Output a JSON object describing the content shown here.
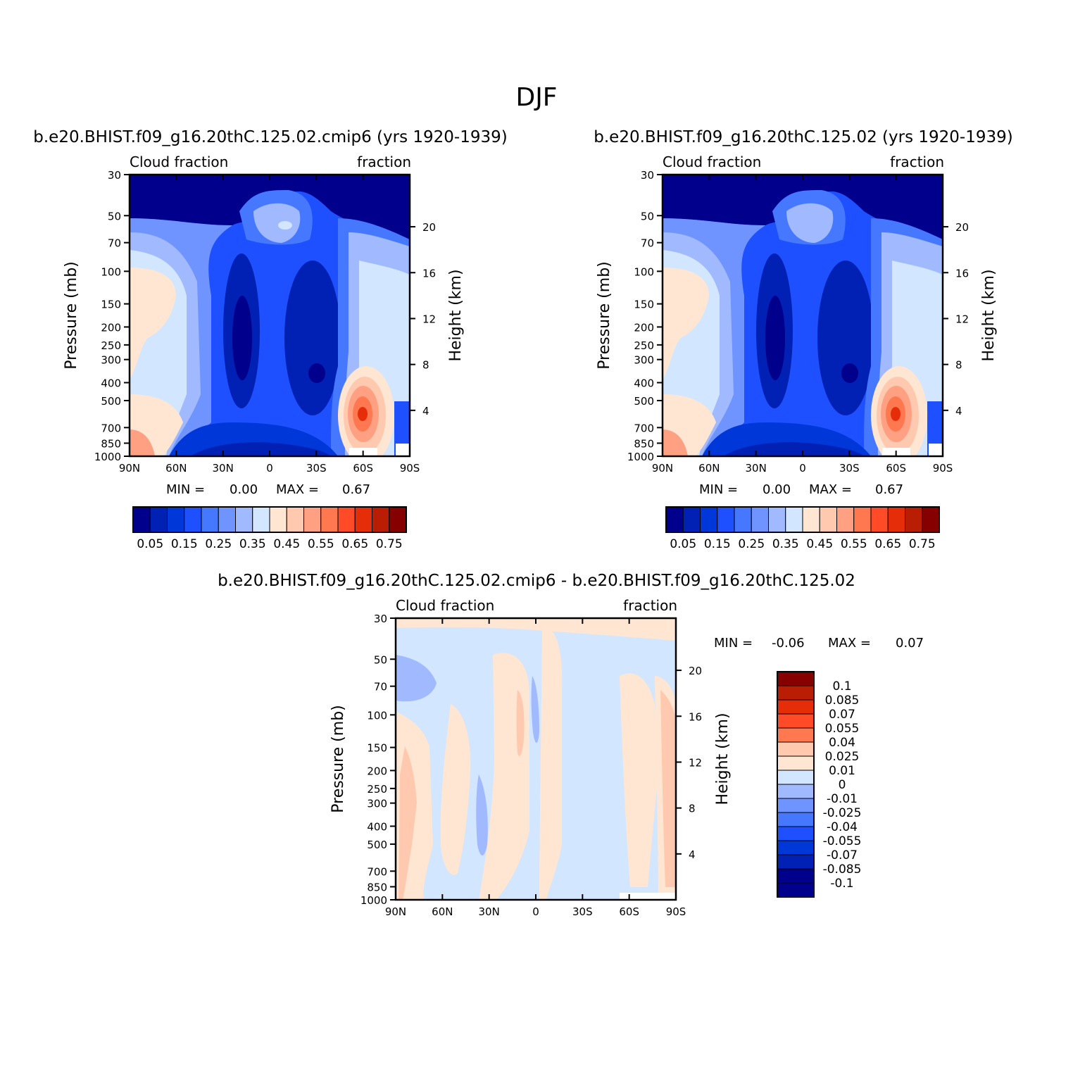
{
  "figure": {
    "title": "DJF"
  },
  "colors": {
    "abs_palette": [
      "#00008c",
      "#0021b3",
      "#0037d9",
      "#1e50ff",
      "#4678ff",
      "#7094ff",
      "#a0b9ff",
      "#d2e6ff",
      "#ffe6d2",
      "#ffc9af",
      "#ffa082",
      "#ff7850",
      "#ff4b28",
      "#e62d0a",
      "#b91e05",
      "#870000"
    ],
    "diff_palette": [
      "#00008c",
      "#0021b3",
      "#0037d9",
      "#1e50ff",
      "#4678ff",
      "#7094ff",
      "#a0b9ff",
      "#d2e6ff",
      "#ffe6d2",
      "#ffc9af",
      "#ff7850",
      "#ff4b28",
      "#e62d0a",
      "#b91e05",
      "#870000"
    ]
  },
  "chart_data": [
    {
      "type": "heatmap",
      "panel": "top-left",
      "title": "b.e20.BHIST.f09_g16.20thC.125.02.cmip6 (yrs 1920-1939)",
      "left_label": "Cloud fraction",
      "right_label": "fraction",
      "xlabel": "",
      "ylabel": "Pressure (mb)",
      "y2label": "Height (km)",
      "x_ticks": [
        "90N",
        "60N",
        "30N",
        "0",
        "30S",
        "60S",
        "90S"
      ],
      "y_ticks": [
        "30",
        "50",
        "70",
        "100",
        "150",
        "200",
        "250",
        "300",
        "400",
        "500",
        "700",
        "850",
        "1000"
      ],
      "y2_ticks": [
        "20",
        "16",
        "12",
        "8",
        "4"
      ],
      "xlim": [
        90,
        -90
      ],
      "ylim": [
        1000,
        30
      ],
      "y_scale": "log",
      "min_label": "MIN =",
      "min_value": "0.00",
      "max_label": "MAX =",
      "max_value": "0.67",
      "colorbar": {
        "orientation": "horizontal",
        "labels": [
          "0.05",
          "0.15",
          "0.25",
          "0.35",
          "0.45",
          "0.55",
          "0.65",
          "0.75"
        ]
      }
    },
    {
      "type": "heatmap",
      "panel": "top-right",
      "title": "b.e20.BHIST.f09_g16.20thC.125.02 (yrs 1920-1939)",
      "left_label": "Cloud fraction",
      "right_label": "fraction",
      "xlabel": "",
      "ylabel": "Pressure (mb)",
      "y2label": "Height (km)",
      "x_ticks": [
        "90N",
        "60N",
        "30N",
        "0",
        "30S",
        "60S",
        "90S"
      ],
      "y_ticks": [
        "30",
        "50",
        "70",
        "100",
        "150",
        "200",
        "250",
        "300",
        "400",
        "500",
        "700",
        "850",
        "1000"
      ],
      "y2_ticks": [
        "20",
        "16",
        "12",
        "8",
        "4"
      ],
      "xlim": [
        90,
        -90
      ],
      "ylim": [
        1000,
        30
      ],
      "y_scale": "log",
      "min_label": "MIN =",
      "min_value": "0.00",
      "max_label": "MAX =",
      "max_value": "0.67",
      "colorbar": {
        "orientation": "horizontal",
        "labels": [
          "0.05",
          "0.15",
          "0.25",
          "0.35",
          "0.45",
          "0.55",
          "0.65",
          "0.75"
        ]
      }
    },
    {
      "type": "heatmap",
      "panel": "bottom",
      "title": "b.e20.BHIST.f09_g16.20thC.125.02.cmip6 - b.e20.BHIST.f09_g16.20thC.125.02",
      "left_label": "Cloud fraction",
      "right_label": "fraction",
      "xlabel": "",
      "ylabel": "Pressure (mb)",
      "y2label": "Height (km)",
      "x_ticks": [
        "90N",
        "60N",
        "30N",
        "0",
        "30S",
        "60S",
        "90S"
      ],
      "y_ticks": [
        "30",
        "50",
        "70",
        "100",
        "150",
        "200",
        "250",
        "300",
        "400",
        "500",
        "700",
        "850",
        "1000"
      ],
      "y2_ticks": [
        "20",
        "16",
        "12",
        "8",
        "4"
      ],
      "xlim": [
        90,
        -90
      ],
      "ylim": [
        1000,
        30
      ],
      "y_scale": "log",
      "min_label": "MIN =",
      "min_value": "-0.06",
      "max_label": "MAX =",
      "max_value": "0.07",
      "colorbar": {
        "orientation": "vertical",
        "labels": [
          "0.1",
          "0.085",
          "0.07",
          "0.055",
          "0.04",
          "0.025",
          "0.01",
          "0",
          "-0.01",
          "-0.025",
          "-0.04",
          "-0.055",
          "-0.07",
          "-0.085",
          "-0.1"
        ]
      }
    }
  ]
}
